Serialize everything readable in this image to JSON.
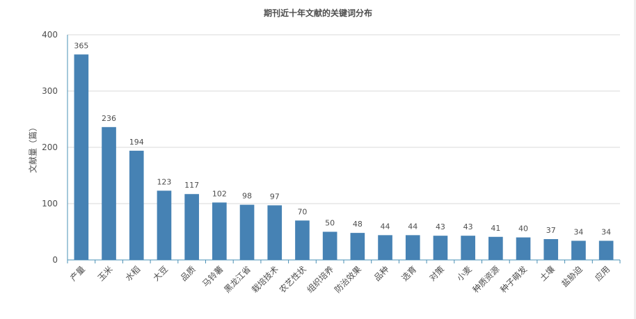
{
  "chart_data": {
    "type": "bar",
    "title": "期刊近十年文献的关键词分布",
    "ylabel": "文献量（篇）",
    "xlabel": "",
    "ylim": [
      0,
      400
    ],
    "yticks": [
      0,
      100,
      200,
      300,
      400
    ],
    "grid": true,
    "legend": "none",
    "bar_color": "#4682b4",
    "categories": [
      "产量",
      "玉米",
      "水稻",
      "大豆",
      "品质",
      "马铃薯",
      "黑龙江省",
      "栽培技术",
      "农艺性状",
      "组织培养",
      "防治效果",
      "品种",
      "选育",
      "对策",
      "小麦",
      "种质资源",
      "种子萌发",
      "土壤",
      "盐胁迫",
      "应用"
    ],
    "values": [
      365,
      236,
      194,
      123,
      117,
      102,
      98,
      97,
      70,
      50,
      48,
      44,
      44,
      43,
      43,
      41,
      40,
      37,
      34,
      34
    ]
  }
}
